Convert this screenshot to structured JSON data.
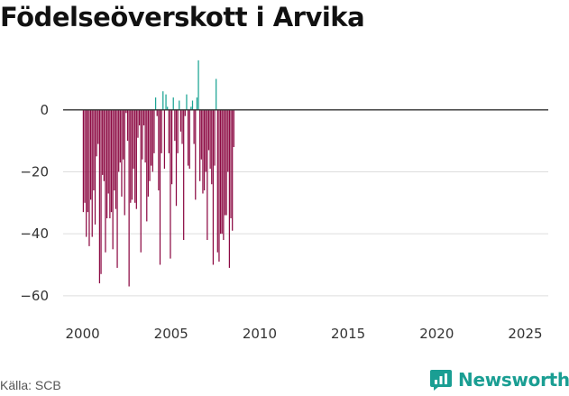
{
  "page": {
    "title": "Födelseöverskott i Arvika",
    "source": "Källa: SCB",
    "brand": "Newsworthy"
  },
  "colors": {
    "negative": "#8c0a43",
    "positive": "#1aa393",
    "grid": "#dddddd",
    "zero_line": "#333333",
    "brand": "#1a9e93"
  },
  "chart_data": {
    "type": "bar",
    "title": "Födelseöverskott i Arvika",
    "xlabel": "",
    "ylabel": "",
    "ylim": [
      -65,
      18
    ],
    "xlim": [
      1998.9,
      2026.3
    ],
    "yticks": [
      0,
      -20,
      -40,
      -60
    ],
    "ytick_labels": [
      "0",
      "−20",
      "−40",
      "−60"
    ],
    "xticks": [
      2000,
      2005,
      2010,
      2015,
      2020,
      2025
    ],
    "xtick_labels": [
      "2000",
      "2005",
      "2010",
      "2015",
      "2020",
      "2025"
    ],
    "grid": true,
    "legend": "none",
    "period": "monthly",
    "start": "2000-01",
    "values": [
      -33,
      -30,
      -41,
      -33,
      -44,
      -29,
      -41,
      -26,
      -37,
      -15,
      -11,
      -56,
      -53,
      -21,
      -23,
      -46,
      -35,
      -27,
      -35,
      -33,
      -45,
      -26,
      -32,
      -51,
      -20,
      -17,
      -28,
      -16,
      -34,
      -1,
      -10,
      -57,
      -30,
      -29,
      -19,
      -30,
      -32,
      -9,
      -5,
      -46,
      -16,
      -5,
      -17,
      -36,
      -28,
      -23,
      -18,
      -20,
      -14,
      4,
      -2,
      -26,
      -50,
      -14,
      6,
      -19,
      5,
      1,
      -14,
      -48,
      -24,
      4,
      -10,
      -31,
      -14,
      3,
      -7,
      -11,
      -42,
      -2,
      5,
      -18,
      -19,
      1,
      3,
      -11,
      -29,
      4,
      16,
      -23,
      -16,
      -27,
      -26,
      -20,
      -42,
      -13,
      -19,
      -24,
      -50,
      -18,
      10,
      -46,
      -49,
      -40,
      -40,
      -42,
      -34,
      -34,
      -20,
      -51,
      -35,
      -39,
      -12
    ]
  }
}
